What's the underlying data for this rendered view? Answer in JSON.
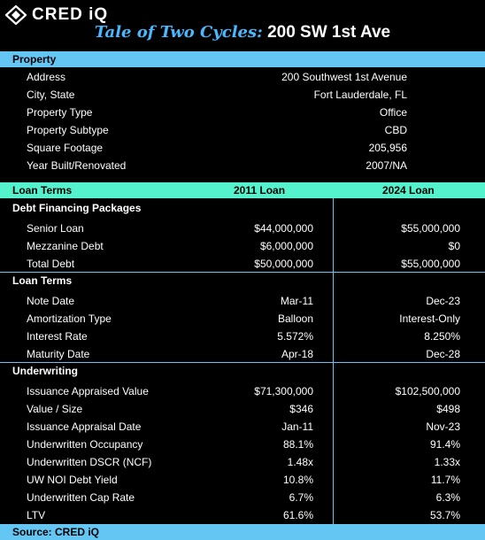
{
  "header": {
    "logo_text": "CRED iQ",
    "title_script": "Tale of Two Cycles:",
    "title_main": "200 SW 1st Ave"
  },
  "property": {
    "heading": "Property",
    "rows": [
      {
        "label": "Address",
        "value": "200 Southwest 1st Avenue"
      },
      {
        "label": "City, State",
        "value": "Fort Lauderdale, FL"
      },
      {
        "label": "Property Type",
        "value": "Office"
      },
      {
        "label": "Property Subtype",
        "value": "CBD"
      },
      {
        "label": "Square Footage",
        "value": "205,956"
      },
      {
        "label": "Year Built/Renovated",
        "value": "2007/NA"
      }
    ]
  },
  "loan_header": {
    "label": "Loan Terms",
    "col1": "2011 Loan",
    "col2": "2024 Loan"
  },
  "debt": {
    "heading": "Debt Financing Packages",
    "rows": [
      {
        "label": "Senior Loan",
        "v2011": "$44,000,000",
        "v2024": "$55,000,000"
      },
      {
        "label": "Mezzanine Debt",
        "v2011": "$6,000,000",
        "v2024": "$0"
      },
      {
        "label": "Total Debt",
        "v2011": "$50,000,000",
        "v2024": "$55,000,000"
      }
    ]
  },
  "terms": {
    "heading": "Loan Terms",
    "rows": [
      {
        "label": "Note Date",
        "v2011": "Mar-11",
        "v2024": "Dec-23"
      },
      {
        "label": "Amortization Type",
        "v2011": "Balloon",
        "v2024": "Interest-Only"
      },
      {
        "label": "Interest Rate",
        "v2011": "5.572%",
        "v2024": "8.250%"
      },
      {
        "label": "Maturity Date",
        "v2011": "Apr-18",
        "v2024": "Dec-28"
      }
    ]
  },
  "underwriting": {
    "heading": "Underwriting",
    "rows": [
      {
        "label": "Issuance Appraised Value",
        "v2011": "$71,300,000",
        "v2024": "$102,500,000"
      },
      {
        "label": "Value / Size",
        "v2011": "$346",
        "v2024": "$498"
      },
      {
        "label": "Issuance Appraisal Date",
        "v2011": "Jan-11",
        "v2024": "Nov-23"
      },
      {
        "label": "Underwritten Occupancy",
        "v2011": "88.1%",
        "v2024": "91.4%"
      },
      {
        "label": "Underwritten DSCR (NCF)",
        "v2011": "1.48x",
        "v2024": "1.33x"
      },
      {
        "label": "UW NOI Debt Yield",
        "v2011": "10.8%",
        "v2024": "11.7%"
      },
      {
        "label": "Underwritten Cap Rate",
        "v2011": "6.7%",
        "v2024": "6.3%"
      },
      {
        "label": "LTV",
        "v2011": "61.6%",
        "v2024": "53.7%"
      }
    ]
  },
  "footer": {
    "source": "Source: CRED iQ"
  },
  "colors": {
    "background": "#000000",
    "accent_blue": "#64c6f3",
    "accent_teal": "#54f2cd",
    "title_script": "#49b9ff"
  }
}
